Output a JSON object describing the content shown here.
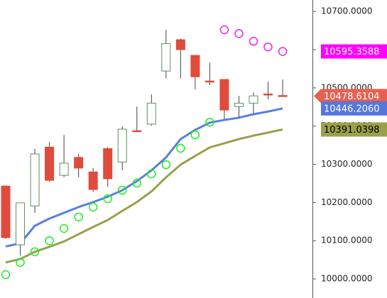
{
  "chart_data": {
    "type": "candlestick",
    "ylim": [
      9950,
      10730
    ],
    "yticks": [
      {
        "value": 10000,
        "label": "10000.0000"
      },
      {
        "value": 10100,
        "label": "10100.0000"
      },
      {
        "value": 10200,
        "label": "10200.0000"
      },
      {
        "value": 10300,
        "label": "10300.0000"
      },
      {
        "value": 10400,
        "label": "10400.0000"
      },
      {
        "value": 10500,
        "label": "10500.0000"
      },
      {
        "value": 10600,
        "label": "10600.0000"
      },
      {
        "value": 10700,
        "label": "10700.0000"
      }
    ],
    "up_color": "#5e8f5e",
    "down_color": "#e04b3c",
    "candles": [
      {
        "open": 10243,
        "high": 10245,
        "low": 10105,
        "close": 10108
      },
      {
        "open": 10089,
        "high": 10200,
        "low": 10061,
        "close": 10199
      },
      {
        "open": 10191,
        "high": 10340,
        "low": 10173,
        "close": 10327
      },
      {
        "open": 10345,
        "high": 10358,
        "low": 10254,
        "close": 10258
      },
      {
        "open": 10271,
        "high": 10377,
        "low": 10266,
        "close": 10303
      },
      {
        "open": 10318,
        "high": 10327,
        "low": 10266,
        "close": 10290
      },
      {
        "open": 10280,
        "high": 10290,
        "low": 10228,
        "close": 10234
      },
      {
        "open": 10341,
        "high": 10345,
        "low": 10241,
        "close": 10262
      },
      {
        "open": 10306,
        "high": 10399,
        "low": 10284,
        "close": 10392
      },
      {
        "open": 10388,
        "high": 10451,
        "low": 10384,
        "close": 10386
      },
      {
        "open": 10405,
        "high": 10483,
        "low": 10401,
        "close": 10460
      },
      {
        "open": 10544,
        "high": 10652,
        "low": 10525,
        "close": 10616
      },
      {
        "open": 10626,
        "high": 10629,
        "low": 10525,
        "close": 10600
      },
      {
        "open": 10585,
        "high": 10585,
        "low": 10496,
        "close": 10529
      },
      {
        "open": 10518,
        "high": 10566,
        "low": 10507,
        "close": 10516
      },
      {
        "open": 10522,
        "high": 10522,
        "low": 10418,
        "close": 10442
      },
      {
        "open": 10451,
        "high": 10479,
        "low": 10423,
        "close": 10460
      },
      {
        "open": 10460,
        "high": 10488,
        "low": 10433,
        "close": 10479
      },
      {
        "open": 10484,
        "high": 10516,
        "low": 10470,
        "close": 10482
      },
      {
        "open": 10480,
        "high": 10522,
        "low": 10477,
        "close": 10478.6104
      }
    ],
    "lines": [
      {
        "color": "#5b7fdc",
        "values": [
          10085,
          10093,
          10139,
          10158,
          10173,
          10188,
          10201,
          10215,
          10232,
          10256,
          10284,
          10318,
          10366,
          10390,
          10409,
          10416,
          10422,
          10431,
          10438,
          10446.206
        ]
      },
      {
        "color": "#9aa04a",
        "values": [
          10043,
          10052,
          10071,
          10084,
          10098,
          10117,
          10136,
          10154,
          10178,
          10201,
          10229,
          10266,
          10299,
          10322,
          10344,
          10355,
          10366,
          10375,
          10383,
          10391.0398
        ]
      }
    ],
    "dots": [
      {
        "color": "#22ee22",
        "values": [
          10011,
          10043,
          10071,
          10100,
          10132,
          10162,
          10188,
          10210,
          10232,
          10251,
          10275,
          10299,
          10342,
          10377,
          10410,
          null,
          null,
          null,
          null,
          null
        ]
      },
      {
        "color": "#ee22ee",
        "values": [
          null,
          null,
          null,
          null,
          null,
          null,
          null,
          null,
          null,
          null,
          null,
          null,
          null,
          null,
          null,
          10652,
          10642,
          10622,
          10607,
          10595.3588
        ]
      }
    ],
    "price_labels": [
      {
        "value": 10595.3588,
        "label": "10595.3588",
        "color": "#ff00ff",
        "text_color": "#ffffff"
      },
      {
        "value": 10478.6104,
        "label": "10478.6104",
        "color": "#e8604f",
        "text_color": "#ffffff",
        "arrow": true
      },
      {
        "value": 10446.206,
        "label": "10446.2060",
        "color": "#5577dd",
        "text_color": "#ffffff"
      },
      {
        "value": 10391.0398,
        "label": "10391.0398",
        "color": "#9aa04a",
        "text_color": "#000000"
      }
    ]
  }
}
